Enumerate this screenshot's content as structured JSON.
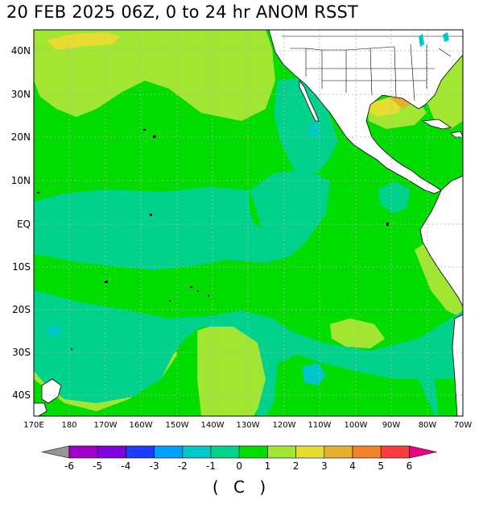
{
  "title": "20 FEB 2025 06Z,    0 to  24 hr ANOM RSST",
  "units": "( C )",
  "lat_labels": [
    "40N",
    "30N",
    "20N",
    "10N",
    "EQ",
    "10S",
    "20S",
    "30S",
    "40S"
  ],
  "lon_labels": [
    "170E",
    "180",
    "170W",
    "160W",
    "150W",
    "140W",
    "130W",
    "120W",
    "110W",
    "100W",
    "90W",
    "80W",
    "70W"
  ],
  "colorbar": {
    "ticks": [
      "-6",
      "-5",
      "-4",
      "-3",
      "-2",
      "-1",
      "0",
      "1",
      "2",
      "3",
      "4",
      "5",
      "6"
    ],
    "colors": [
      "#a000c8",
      "#8200dc",
      "#1e3cff",
      "#00a0ff",
      "#00c8c8",
      "#00d28c",
      "#00dc00",
      "#a0e632",
      "#e6dc32",
      "#e6af2d",
      "#f08228",
      "#fa3c3c",
      "#f00082"
    ],
    "under_color": "#969696",
    "over_color": "#f00082"
  },
  "colors": {
    "ocean_base": "#00dc00",
    "land": "#ffffff",
    "grid": "#b4b4b4"
  }
}
